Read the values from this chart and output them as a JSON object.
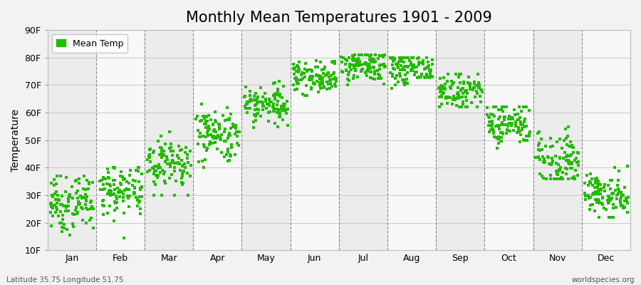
{
  "title": "Monthly Mean Temperatures 1901 - 2009",
  "ylabel": "Temperature",
  "bottom_left": "Latitude 35.75 Longitude 51.75",
  "bottom_right": "worldspecies.org",
  "legend_label": "Mean Temp",
  "dot_color": "#22BB00",
  "bg_color": "#F2F2F2",
  "band_light": "#ECECEC",
  "band_white": "#F8F8F8",
  "yticks": [
    10,
    20,
    30,
    40,
    50,
    60,
    70,
    80,
    90
  ],
  "ylim": [
    10,
    90
  ],
  "months": [
    "Jan",
    "Feb",
    "Mar",
    "Apr",
    "May",
    "Jun",
    "Jul",
    "Aug",
    "Sep",
    "Oct",
    "Nov",
    "Dec"
  ],
  "month_mean_F": [
    27,
    32,
    42,
    52,
    63,
    73,
    77,
    76,
    68,
    56,
    43,
    30
  ],
  "month_std_F": [
    5,
    5,
    5,
    5,
    4,
    3,
    3,
    3,
    3,
    4,
    5,
    4
  ],
  "month_min_F": [
    13,
    14,
    30,
    40,
    49,
    65,
    70,
    68,
    62,
    47,
    36,
    22
  ],
  "month_max_F": [
    37,
    40,
    56,
    63,
    73,
    79,
    81,
    80,
    74,
    62,
    61,
    41
  ],
  "n_years": 109,
  "title_fontsize": 15,
  "axis_label_fontsize": 10,
  "tick_fontsize": 9,
  "marker_size": 8,
  "figsize": [
    9.0,
    4.0
  ],
  "dpi": 100
}
